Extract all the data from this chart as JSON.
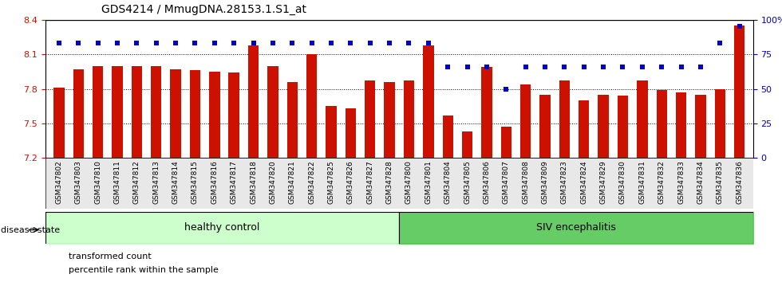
{
  "title": "GDS4214 / MmugDNA.28153.1.S1_at",
  "samples": [
    "GSM347802",
    "GSM347803",
    "GSM347810",
    "GSM347811",
    "GSM347812",
    "GSM347813",
    "GSM347814",
    "GSM347815",
    "GSM347816",
    "GSM347817",
    "GSM347818",
    "GSM347820",
    "GSM347821",
    "GSM347822",
    "GSM347825",
    "GSM347826",
    "GSM347827",
    "GSM347828",
    "GSM347800",
    "GSM347801",
    "GSM347804",
    "GSM347805",
    "GSM347806",
    "GSM347807",
    "GSM347808",
    "GSM347809",
    "GSM347823",
    "GSM347824",
    "GSM347829",
    "GSM347830",
    "GSM347831",
    "GSM347832",
    "GSM347833",
    "GSM347834",
    "GSM347835",
    "GSM347836"
  ],
  "bar_values": [
    7.81,
    7.97,
    8.0,
    8.0,
    8.0,
    8.0,
    7.97,
    7.96,
    7.95,
    7.94,
    8.18,
    8.0,
    7.86,
    8.1,
    7.65,
    7.63,
    7.87,
    7.86,
    7.87,
    8.18,
    7.57,
    7.43,
    7.99,
    7.47,
    7.84,
    7.75,
    7.87,
    7.7,
    7.75,
    7.74,
    7.87,
    7.79,
    7.77,
    7.75,
    7.8,
    8.35
  ],
  "percentile_values": [
    83,
    83,
    83,
    83,
    83,
    83,
    83,
    83,
    83,
    83,
    83,
    83,
    83,
    83,
    83,
    83,
    83,
    83,
    83,
    83,
    66,
    66,
    66,
    50,
    66,
    66,
    66,
    66,
    66,
    66,
    66,
    66,
    66,
    66,
    83,
    95
  ],
  "healthy_count": 18,
  "ylim_left": [
    7.2,
    8.4
  ],
  "ylim_right": [
    0,
    100
  ],
  "bar_color": "#cc1100",
  "dot_color": "#0000cc",
  "healthy_color": "#ccffcc",
  "siv_color": "#66cc66",
  "grid_vals": [
    7.5,
    7.8,
    8.1
  ],
  "yticks": [
    7.2,
    7.5,
    7.8,
    8.1,
    8.4
  ],
  "ytick_labels": [
    "7.2",
    "7.5",
    "7.8",
    "8.1",
    "8.4"
  ],
  "right_yticks": [
    0,
    25,
    50,
    75,
    100
  ],
  "right_ytick_labels": [
    "0",
    "25",
    "50",
    "75",
    "100%"
  ],
  "label_fontsize": 6.5,
  "title_fontsize": 10,
  "bar_width": 0.55
}
